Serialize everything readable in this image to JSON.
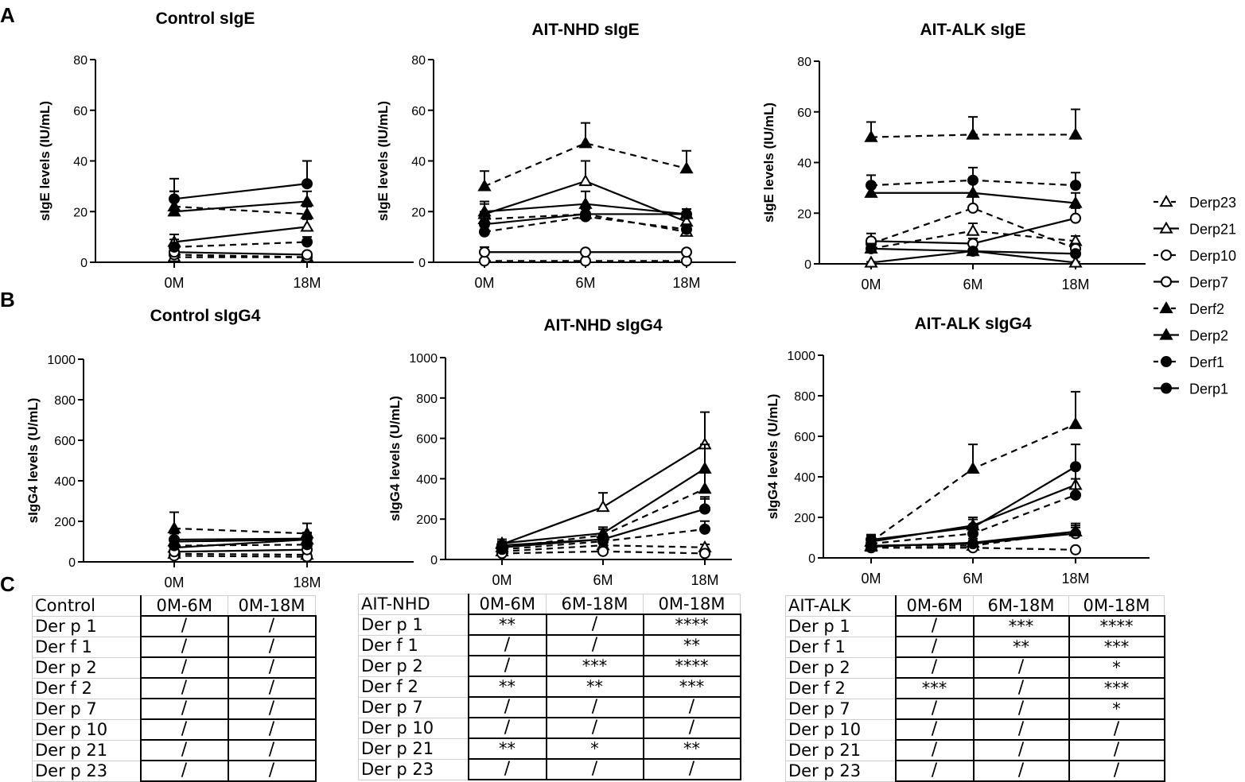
{
  "panel_letters": [
    "A",
    "B",
    "C"
  ],
  "legend": [
    {
      "name": "Derp23",
      "marker": "triangle-open",
      "dash": true
    },
    {
      "name": "Derp21",
      "marker": "triangle-open",
      "dash": false
    },
    {
      "name": "Derp10",
      "marker": "circle-open",
      "dash": true
    },
    {
      "name": "Derp7",
      "marker": "circle-open",
      "dash": false
    },
    {
      "name": "Derf2",
      "marker": "triangle-filled",
      "dash": true
    },
    {
      "name": "Derp2",
      "marker": "triangle-filled",
      "dash": false
    },
    {
      "name": "Derf1",
      "marker": "circle-filled",
      "dash": true
    },
    {
      "name": "Derp1",
      "marker": "circle-filled",
      "dash": false
    }
  ],
  "chart_data": [
    {
      "type": "line",
      "title": "Control sIgE",
      "ylabel": "sIgE levels (IU/mL)",
      "categories": [
        "0M",
        "18M"
      ],
      "ylim": [
        0,
        80
      ],
      "yticks": [
        0,
        20,
        40,
        60,
        80
      ],
      "series": [
        {
          "name": "Derp23",
          "values": [
            2,
            2
          ],
          "err": [
            1,
            1
          ]
        },
        {
          "name": "Derp21",
          "values": [
            8,
            14
          ],
          "err": [
            3,
            3
          ]
        },
        {
          "name": "Derp10",
          "values": [
            3,
            2
          ],
          "err": [
            1,
            1
          ]
        },
        {
          "name": "Derp7",
          "values": [
            4,
            3
          ],
          "err": [
            1,
            1
          ]
        },
        {
          "name": "Derf2",
          "values": [
            22,
            19
          ],
          "err": [
            6,
            3
          ]
        },
        {
          "name": "Derp2",
          "values": [
            20,
            24
          ],
          "err": [
            8,
            4
          ]
        },
        {
          "name": "Derf1",
          "values": [
            6,
            8
          ],
          "err": [
            3,
            2
          ]
        },
        {
          "name": "Derp1",
          "values": [
            25,
            31
          ],
          "err": [
            8,
            9
          ]
        }
      ]
    },
    {
      "type": "line",
      "title": "AIT-NHD sIgE",
      "ylabel": "sIgE levels (IU/mL)",
      "categories": [
        "0M",
        "6M",
        "18M"
      ],
      "ylim": [
        0,
        80
      ],
      "yticks": [
        0,
        20,
        40,
        60,
        80
      ],
      "series": [
        {
          "name": "Derp23",
          "values": [
            17,
            19,
            12
          ],
          "err": [
            3,
            3,
            2
          ]
        },
        {
          "name": "Derp21",
          "values": [
            19,
            32,
            16
          ],
          "err": [
            4,
            8,
            3
          ]
        },
        {
          "name": "Derp10",
          "values": [
            0.5,
            0.5,
            0.5
          ],
          "err": [
            0.3,
            0.3,
            0.3
          ]
        },
        {
          "name": "Derp7",
          "values": [
            4,
            4,
            4
          ],
          "err": [
            2,
            1,
            1
          ]
        },
        {
          "name": "Derf2",
          "values": [
            30,
            47,
            37
          ],
          "err": [
            6,
            8,
            7
          ]
        },
        {
          "name": "Derp2",
          "values": [
            20,
            23,
            19
          ],
          "err": [
            4,
            5,
            2
          ]
        },
        {
          "name": "Derf1",
          "values": [
            12,
            18,
            13
          ],
          "err": [
            3,
            3,
            2
          ]
        },
        {
          "name": "Derp1",
          "values": [
            15,
            19,
            19
          ],
          "err": [
            3,
            3,
            2
          ]
        }
      ]
    },
    {
      "type": "line",
      "title": "AIT-ALK sIgE",
      "ylabel": "sIgE levels (IU/mL)",
      "categories": [
        "0M",
        "6M",
        "18M"
      ],
      "ylim": [
        0,
        80
      ],
      "yticks": [
        0,
        20,
        40,
        60,
        80
      ],
      "series": [
        {
          "name": "Derp23",
          "values": [
            6,
            13,
            9
          ],
          "err": [
            2,
            3,
            2
          ]
        },
        {
          "name": "Derp21",
          "values": [
            0.5,
            5,
            0.5
          ],
          "err": [
            0.3,
            1,
            0.3
          ]
        },
        {
          "name": "Derp10",
          "values": [
            8,
            22,
            6
          ],
          "err": [
            2,
            5,
            2
          ]
        },
        {
          "name": "Derp7",
          "values": [
            9,
            8,
            18
          ],
          "err": [
            3,
            2,
            4
          ]
        },
        {
          "name": "Derf2",
          "values": [
            50,
            51,
            51
          ],
          "err": [
            6,
            7,
            10
          ]
        },
        {
          "name": "Derp2",
          "values": [
            28,
            28,
            24
          ],
          "err": [
            4,
            4,
            4
          ]
        },
        {
          "name": "Derf1",
          "values": [
            31,
            33,
            31
          ],
          "err": [
            4,
            5,
            5
          ]
        },
        {
          "name": "Derp1",
          "values": [
            6,
            5,
            4
          ],
          "err": [
            2,
            1,
            1
          ]
        }
      ]
    },
    {
      "type": "line",
      "title": "Control sIgG4",
      "ylabel": "sIgG4 levels (U/mL)",
      "categories": [
        "0M",
        "18M"
      ],
      "ylim": [
        0,
        1000
      ],
      "yticks": [
        0,
        200,
        400,
        600,
        800,
        1000
      ],
      "series": [
        {
          "name": "Derp23",
          "values": [
            40,
            35
          ],
          "err": [
            10,
            8
          ]
        },
        {
          "name": "Derp21",
          "values": [
            70,
            110
          ],
          "err": [
            25,
            20
          ]
        },
        {
          "name": "Derp10",
          "values": [
            30,
            25
          ],
          "err": [
            8,
            6
          ]
        },
        {
          "name": "Derp7",
          "values": [
            50,
            60
          ],
          "err": [
            12,
            10
          ]
        },
        {
          "name": "Derf2",
          "values": [
            165,
            140
          ],
          "err": [
            80,
            50
          ]
        },
        {
          "name": "Derp2",
          "values": [
            100,
            110
          ],
          "err": [
            40,
            30
          ]
        },
        {
          "name": "Derf1",
          "values": [
            80,
            85
          ],
          "err": [
            30,
            25
          ]
        },
        {
          "name": "Derp1",
          "values": [
            110,
            115
          ],
          "err": [
            30,
            30
          ]
        }
      ]
    },
    {
      "type": "line",
      "title": "AIT-NHD sIgG4",
      "ylabel": "sIgG4 levels (U/mL)",
      "categories": [
        "0M",
        "6M",
        "18M"
      ],
      "ylim": [
        0,
        1000
      ],
      "yticks": [
        0,
        200,
        400,
        600,
        800,
        1000
      ],
      "series": [
        {
          "name": "Derp23",
          "values": [
            40,
            70,
            60
          ],
          "err": [
            10,
            15,
            15
          ]
        },
        {
          "name": "Derp21",
          "values": [
            75,
            260,
            570
          ],
          "err": [
            15,
            70,
            160
          ]
        },
        {
          "name": "Derp10",
          "values": [
            30,
            40,
            30
          ],
          "err": [
            8,
            10,
            10
          ]
        },
        {
          "name": "Derp7",
          "values": [
            60,
            100,
            250
          ],
          "err": [
            15,
            25,
            50
          ]
        },
        {
          "name": "Derf2",
          "values": [
            60,
            120,
            350
          ],
          "err": [
            15,
            30,
            80
          ]
        },
        {
          "name": "Derp2",
          "values": [
            80,
            130,
            450
          ],
          "err": [
            20,
            30,
            120
          ]
        },
        {
          "name": "Derf1",
          "values": [
            50,
            90,
            150
          ],
          "err": [
            12,
            20,
            40
          ]
        },
        {
          "name": "Derp1",
          "values": [
            70,
            100,
            250
          ],
          "err": [
            15,
            25,
            60
          ]
        }
      ]
    },
    {
      "type": "line",
      "title": "AIT-ALK sIgG4",
      "ylabel": "sIgG4 levels (U/mL)",
      "categories": [
        "0M",
        "6M",
        "18M"
      ],
      "ylim": [
        0,
        1000
      ],
      "yticks": [
        0,
        200,
        400,
        600,
        800,
        1000
      ],
      "series": [
        {
          "name": "Derp23",
          "values": [
            60,
            60,
            130
          ],
          "err": [
            15,
            15,
            30
          ]
        },
        {
          "name": "Derp21",
          "values": [
            80,
            160,
            360
          ],
          "err": [
            20,
            40,
            90
          ]
        },
        {
          "name": "Derp10",
          "values": [
            50,
            50,
            40
          ],
          "err": [
            10,
            10,
            10
          ]
        },
        {
          "name": "Derp7",
          "values": [
            60,
            70,
            120
          ],
          "err": [
            15,
            15,
            30
          ]
        },
        {
          "name": "Derf2",
          "values": [
            80,
            440,
            660
          ],
          "err": [
            30,
            120,
            160
          ]
        },
        {
          "name": "Derp2",
          "values": [
            55,
            75,
            130
          ],
          "err": [
            15,
            20,
            40
          ]
        },
        {
          "name": "Derf1",
          "values": [
            70,
            120,
            310
          ],
          "err": [
            20,
            30,
            80
          ]
        },
        {
          "name": "Derp1",
          "values": [
            90,
            150,
            450
          ],
          "err": [
            25,
            40,
            110
          ]
        }
      ]
    }
  ],
  "tables": [
    {
      "group": "Control",
      "cols": [
        "0M-6M",
        "0M-18M"
      ],
      "rows": [
        {
          "label": "Der p 1",
          "vals": [
            "/",
            "/"
          ]
        },
        {
          "label": "Der f 1",
          "vals": [
            "/",
            "/"
          ]
        },
        {
          "label": "Der p 2",
          "vals": [
            "/",
            "/"
          ]
        },
        {
          "label": "Der f 2",
          "vals": [
            "/",
            "/"
          ]
        },
        {
          "label": "Der p 7",
          "vals": [
            "/",
            "/"
          ]
        },
        {
          "label": "Der p 10",
          "vals": [
            "/",
            "/"
          ]
        },
        {
          "label": "Der p 21",
          "vals": [
            "/",
            "/"
          ]
        },
        {
          "label": "Der p 23",
          "vals": [
            "/",
            "/"
          ]
        }
      ]
    },
    {
      "group": "AIT-NHD",
      "cols": [
        "0M-6M",
        "6M-18M",
        "0M-18M"
      ],
      "rows": [
        {
          "label": "Der p 1",
          "vals": [
            "**",
            "/",
            "****"
          ]
        },
        {
          "label": "Der f 1",
          "vals": [
            "/",
            "/",
            "**"
          ]
        },
        {
          "label": "Der p 2",
          "vals": [
            "/",
            "***",
            "****"
          ]
        },
        {
          "label": "Der f 2",
          "vals": [
            "**",
            "**",
            "***"
          ]
        },
        {
          "label": "Der p 7",
          "vals": [
            "/",
            "/",
            "/"
          ]
        },
        {
          "label": "Der p 10",
          "vals": [
            "/",
            "/",
            "/"
          ]
        },
        {
          "label": "Der p 21",
          "vals": [
            "**",
            "*",
            "**"
          ]
        },
        {
          "label": "Der p 23",
          "vals": [
            "/",
            "/",
            "/"
          ]
        }
      ]
    },
    {
      "group": "AIT-ALK",
      "cols": [
        "0M-6M",
        "6M-18M",
        "0M-18M"
      ],
      "rows": [
        {
          "label": "Der p 1",
          "vals": [
            "/",
            "***",
            "****"
          ]
        },
        {
          "label": "Der f 1",
          "vals": [
            "/",
            "**",
            "***"
          ]
        },
        {
          "label": "Der p 2",
          "vals": [
            "/",
            "/",
            "*"
          ]
        },
        {
          "label": "Der f 2",
          "vals": [
            "***",
            "/",
            "***"
          ]
        },
        {
          "label": "Der p 7",
          "vals": [
            "/",
            "/",
            "*"
          ]
        },
        {
          "label": "Der p 10",
          "vals": [
            "/",
            "/",
            "/"
          ]
        },
        {
          "label": "Der p 21",
          "vals": [
            "/",
            "/",
            "/"
          ]
        },
        {
          "label": "Der p 23",
          "vals": [
            "/",
            "/",
            "/"
          ]
        }
      ]
    }
  ]
}
